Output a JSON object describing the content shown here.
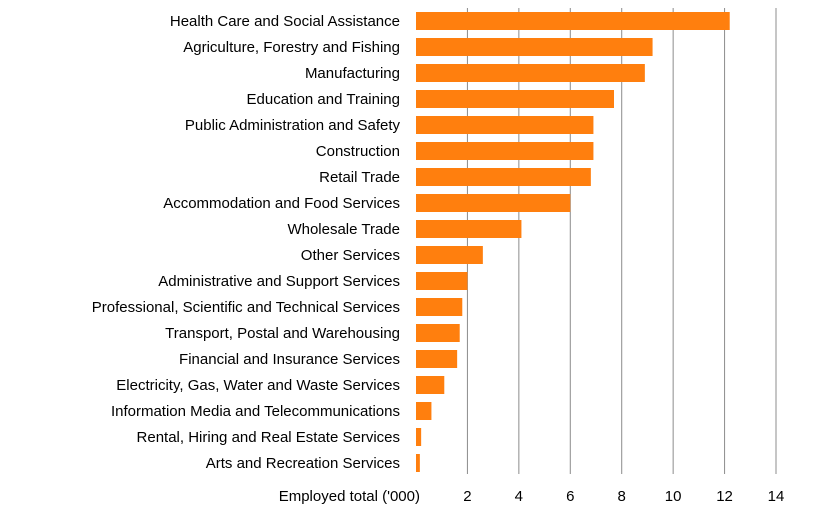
{
  "chart_data": {
    "type": "bar",
    "orientation": "horizontal",
    "xlabel": "Employed total ('000)",
    "xlim": [
      0,
      14
    ],
    "xticks": [
      2,
      4,
      6,
      8,
      10,
      12,
      14
    ],
    "grid": "vertical",
    "bar_color": "#FF7F0E",
    "categories": [
      "Health Care and Social Assistance",
      "Agriculture, Forestry and Fishing",
      "Manufacturing",
      "Education and Training",
      "Public Administration and Safety",
      "Construction",
      "Retail Trade",
      "Accommodation and Food Services",
      "Wholesale Trade",
      "Other Services",
      "Administrative and Support Services",
      "Professional, Scientific and Technical Services",
      "Transport, Postal and Warehousing",
      "Financial and Insurance Services",
      "Electricity, Gas, Water and Waste Services",
      "Information Media and Telecommunications",
      "Rental, Hiring and Real Estate Services",
      "Arts and Recreation Services"
    ],
    "values": [
      12.2,
      9.2,
      8.9,
      7.7,
      6.9,
      6.9,
      6.8,
      6.0,
      4.1,
      2.6,
      2.0,
      1.8,
      1.7,
      1.6,
      1.1,
      0.6,
      0.2,
      0.15
    ]
  }
}
